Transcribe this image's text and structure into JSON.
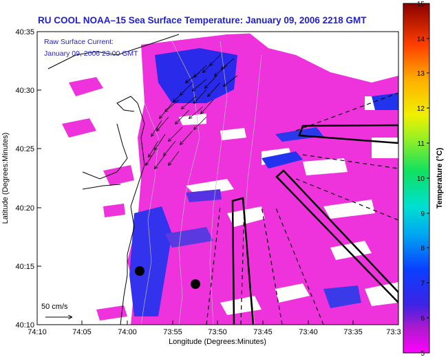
{
  "title": "RU COOL  NOAA–15  Sea Surface Temperature:  January 09, 2006 2218 GMT",
  "current_note": {
    "line1": "Raw Surface Current:",
    "line2": "January 09, 2006 23:00 GMT"
  },
  "scale_label": "50 cm/s",
  "x_axis": {
    "label": "Longitude (Degrees:Minutes)",
    "ticks": [
      "74:10",
      "74:05",
      "74:00",
      "73:55",
      "73:50",
      "73:45",
      "73:40",
      "73:35",
      "73:3"
    ]
  },
  "y_axis": {
    "label": "Latitude (Degrees:Minutes)",
    "ticks": [
      "40:35",
      "40:30",
      "40:25",
      "40:20",
      "40:15",
      "40:10"
    ]
  },
  "colorbar": {
    "label": "Temperature (°C)",
    "ticks": [
      "15",
      "14",
      "13",
      "12",
      "11",
      "10",
      "9",
      "8",
      "7",
      "6",
      "5"
    ],
    "min": 5,
    "max": 15
  },
  "colors": {
    "land": "#ffffff",
    "sst_main": "#ee33dd",
    "sst_cold": "#2233ee",
    "title": "#1e1ed2"
  }
}
